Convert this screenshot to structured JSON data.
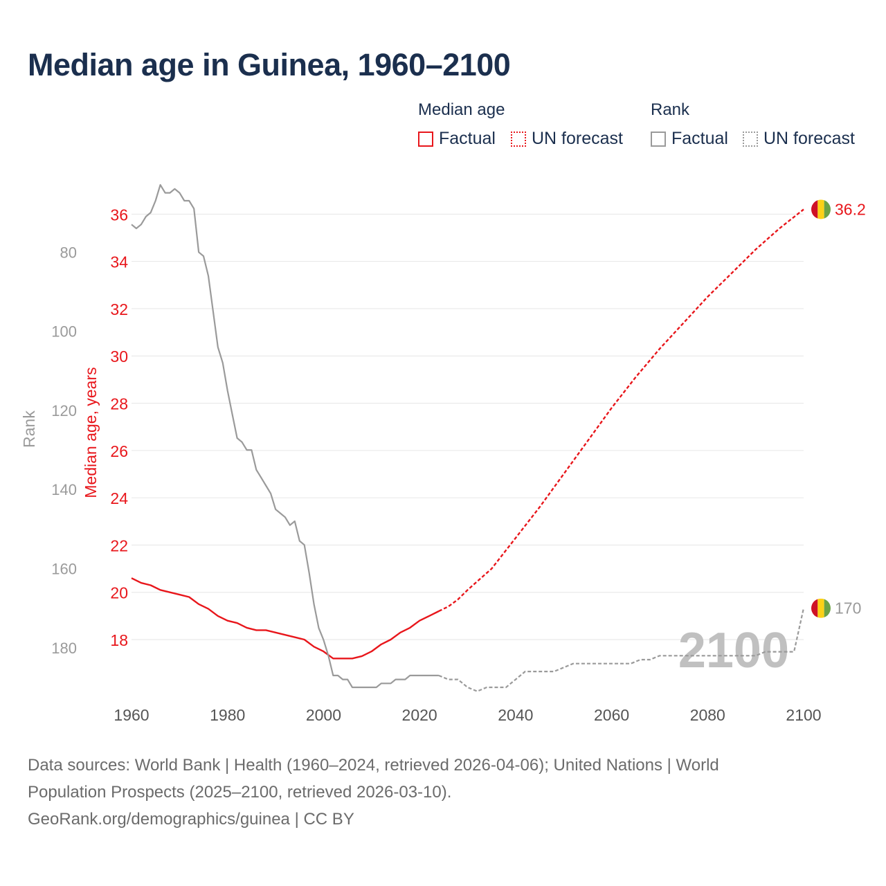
{
  "title": "Median age in Guinea, 1960–2100",
  "legend": {
    "median_title": "Median age",
    "rank_title": "Rank",
    "factual": "Factual",
    "forecast": "UN forecast"
  },
  "colors": {
    "median": "#e8161b",
    "rank": "#9a9a9a",
    "grid": "#e6e6e6",
    "year_watermark": "#c0c0c0"
  },
  "footer": {
    "line1": "Data sources: World Bank | Health (1960–2024, retrieved 2026-04-06); United Nations | World",
    "line2": "Population Prospects (2025–2100, retrieved 2026-03-10).",
    "line3": "GeoRank.org/demographics/guinea | CC BY"
  },
  "chart_data": {
    "type": "line",
    "title": "Median age in Guinea, 1960–2100",
    "xlabel": "",
    "ylabel": "Median age, years",
    "y2label": "Rank",
    "xlim": [
      1960,
      2100
    ],
    "ylim": [
      16.8,
      36.8
    ],
    "y2lim_reversed": [
      65.6,
      185.1
    ],
    "x_ticks": [
      1960,
      1980,
      2000,
      2020,
      2040,
      2060,
      2080,
      2100
    ],
    "y_ticks": [
      18,
      20,
      22,
      24,
      26,
      28,
      30,
      32,
      34,
      36
    ],
    "y2_ticks": [
      80,
      100,
      120,
      140,
      160,
      180
    ],
    "current_year_label": "2100",
    "end_labels": {
      "median": "36.2",
      "rank": "170"
    },
    "series": [
      {
        "name": "Median age (Factual)",
        "axis": "left",
        "style": "solid",
        "points": [
          [
            1960,
            20.6
          ],
          [
            1962,
            20.4
          ],
          [
            1964,
            20.3
          ],
          [
            1966,
            20.1
          ],
          [
            1968,
            20.0
          ],
          [
            1970,
            19.9
          ],
          [
            1972,
            19.8
          ],
          [
            1974,
            19.5
          ],
          [
            1976,
            19.3
          ],
          [
            1978,
            19.0
          ],
          [
            1980,
            18.8
          ],
          [
            1982,
            18.7
          ],
          [
            1984,
            18.5
          ],
          [
            1986,
            18.4
          ],
          [
            1988,
            18.4
          ],
          [
            1990,
            18.3
          ],
          [
            1992,
            18.2
          ],
          [
            1994,
            18.1
          ],
          [
            1996,
            18.0
          ],
          [
            1998,
            17.7
          ],
          [
            2000,
            17.5
          ],
          [
            2002,
            17.2
          ],
          [
            2004,
            17.2
          ],
          [
            2006,
            17.2
          ],
          [
            2008,
            17.3
          ],
          [
            2010,
            17.5
          ],
          [
            2012,
            17.8
          ],
          [
            2014,
            18.0
          ],
          [
            2016,
            18.3
          ],
          [
            2018,
            18.5
          ],
          [
            2020,
            18.8
          ],
          [
            2022,
            19.0
          ],
          [
            2024,
            19.2
          ]
        ]
      },
      {
        "name": "Median age (UN forecast)",
        "axis": "left",
        "style": "dotted",
        "points": [
          [
            2024,
            19.2
          ],
          [
            2026,
            19.4
          ],
          [
            2028,
            19.7
          ],
          [
            2030,
            20.1
          ],
          [
            2035,
            21.0
          ],
          [
            2040,
            22.3
          ],
          [
            2045,
            23.6
          ],
          [
            2050,
            25.0
          ],
          [
            2055,
            26.4
          ],
          [
            2060,
            27.8
          ],
          [
            2065,
            29.1
          ],
          [
            2070,
            30.3
          ],
          [
            2075,
            31.4
          ],
          [
            2080,
            32.5
          ],
          [
            2085,
            33.5
          ],
          [
            2090,
            34.5
          ],
          [
            2095,
            35.4
          ],
          [
            2100,
            36.2
          ]
        ]
      },
      {
        "name": "Rank (Factual)",
        "axis": "right",
        "style": "solid",
        "points": [
          [
            1960,
            73
          ],
          [
            1961,
            74
          ],
          [
            1962,
            73
          ],
          [
            1963,
            71
          ],
          [
            1964,
            70
          ],
          [
            1965,
            67
          ],
          [
            1966,
            63
          ],
          [
            1967,
            65
          ],
          [
            1968,
            65
          ],
          [
            1969,
            64
          ],
          [
            1970,
            65
          ],
          [
            1971,
            67
          ],
          [
            1972,
            67
          ],
          [
            1973,
            69
          ],
          [
            1974,
            80
          ],
          [
            1975,
            81
          ],
          [
            1976,
            86
          ],
          [
            1977,
            95
          ],
          [
            1978,
            104
          ],
          [
            1979,
            108
          ],
          [
            1980,
            115
          ],
          [
            1981,
            121
          ],
          [
            1982,
            127
          ],
          [
            1983,
            128
          ],
          [
            1984,
            130
          ],
          [
            1985,
            130
          ],
          [
            1986,
            135
          ],
          [
            1987,
            137
          ],
          [
            1988,
            139
          ],
          [
            1989,
            141
          ],
          [
            1990,
            145
          ],
          [
            1991,
            146
          ],
          [
            1992,
            147
          ],
          [
            1993,
            149
          ],
          [
            1994,
            148
          ],
          [
            1995,
            153
          ],
          [
            1996,
            154
          ],
          [
            1997,
            161
          ],
          [
            1998,
            169
          ],
          [
            1999,
            175
          ],
          [
            2000,
            178
          ],
          [
            2001,
            182
          ],
          [
            2002,
            187
          ],
          [
            2003,
            187
          ],
          [
            2004,
            188
          ],
          [
            2005,
            188
          ],
          [
            2006,
            190
          ],
          [
            2007,
            190
          ],
          [
            2008,
            190
          ],
          [
            2009,
            190
          ],
          [
            2010,
            190
          ],
          [
            2011,
            190
          ],
          [
            2012,
            189
          ],
          [
            2013,
            189
          ],
          [
            2014,
            189
          ],
          [
            2015,
            188
          ],
          [
            2016,
            188
          ],
          [
            2017,
            188
          ],
          [
            2018,
            187
          ],
          [
            2019,
            187
          ],
          [
            2020,
            187
          ],
          [
            2021,
            187
          ],
          [
            2022,
            187
          ],
          [
            2023,
            187
          ],
          [
            2024,
            187
          ]
        ]
      },
      {
        "name": "Rank (UN forecast)",
        "axis": "right",
        "style": "dotted",
        "points": [
          [
            2024,
            187
          ],
          [
            2026,
            188
          ],
          [
            2028,
            188
          ],
          [
            2030,
            190
          ],
          [
            2032,
            191
          ],
          [
            2034,
            190
          ],
          [
            2036,
            190
          ],
          [
            2038,
            190
          ],
          [
            2040,
            188
          ],
          [
            2042,
            186
          ],
          [
            2044,
            186
          ],
          [
            2046,
            186
          ],
          [
            2048,
            186
          ],
          [
            2050,
            185
          ],
          [
            2052,
            184
          ],
          [
            2054,
            184
          ],
          [
            2056,
            184
          ],
          [
            2058,
            184
          ],
          [
            2060,
            184
          ],
          [
            2062,
            184
          ],
          [
            2064,
            184
          ],
          [
            2066,
            183
          ],
          [
            2068,
            183
          ],
          [
            2070,
            182
          ],
          [
            2072,
            182
          ],
          [
            2074,
            182
          ],
          [
            2076,
            182
          ],
          [
            2078,
            182
          ],
          [
            2080,
            182
          ],
          [
            2082,
            182
          ],
          [
            2084,
            182
          ],
          [
            2086,
            182
          ],
          [
            2088,
            182
          ],
          [
            2090,
            182
          ],
          [
            2092,
            181
          ],
          [
            2094,
            181
          ],
          [
            2096,
            181
          ],
          [
            2098,
            181
          ],
          [
            2100,
            170
          ]
        ]
      }
    ]
  }
}
